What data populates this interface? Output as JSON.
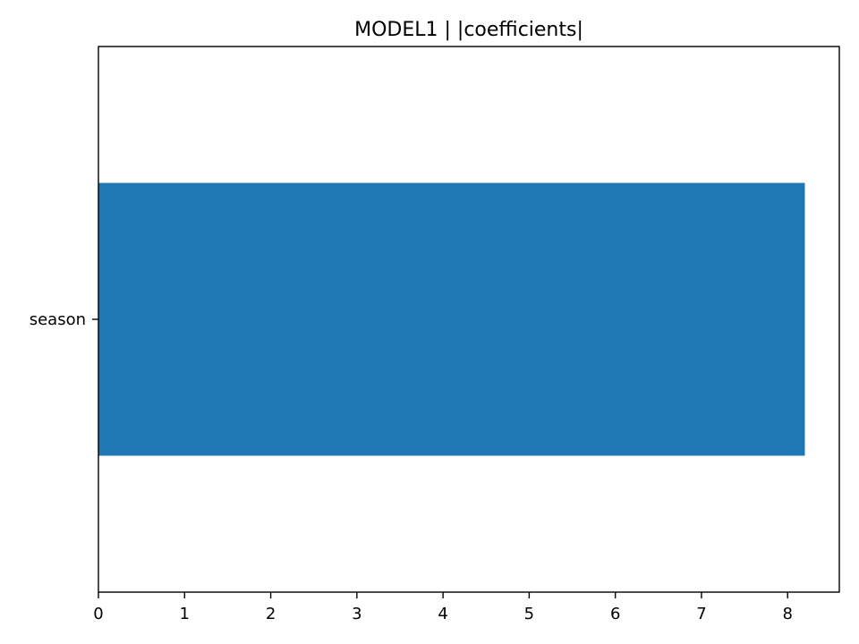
{
  "chart_data": {
    "type": "bar",
    "orientation": "horizontal",
    "title": "MODEL1 | |coefficients|",
    "xlabel": "",
    "ylabel": "",
    "categories": [
      "season"
    ],
    "values": [
      8.2
    ],
    "xlim": [
      0,
      8.6
    ],
    "xticks": [
      0,
      1,
      2,
      3,
      4,
      5,
      6,
      7,
      8
    ],
    "bar_color": "#1f77b4",
    "grid": false,
    "legend": "none"
  }
}
